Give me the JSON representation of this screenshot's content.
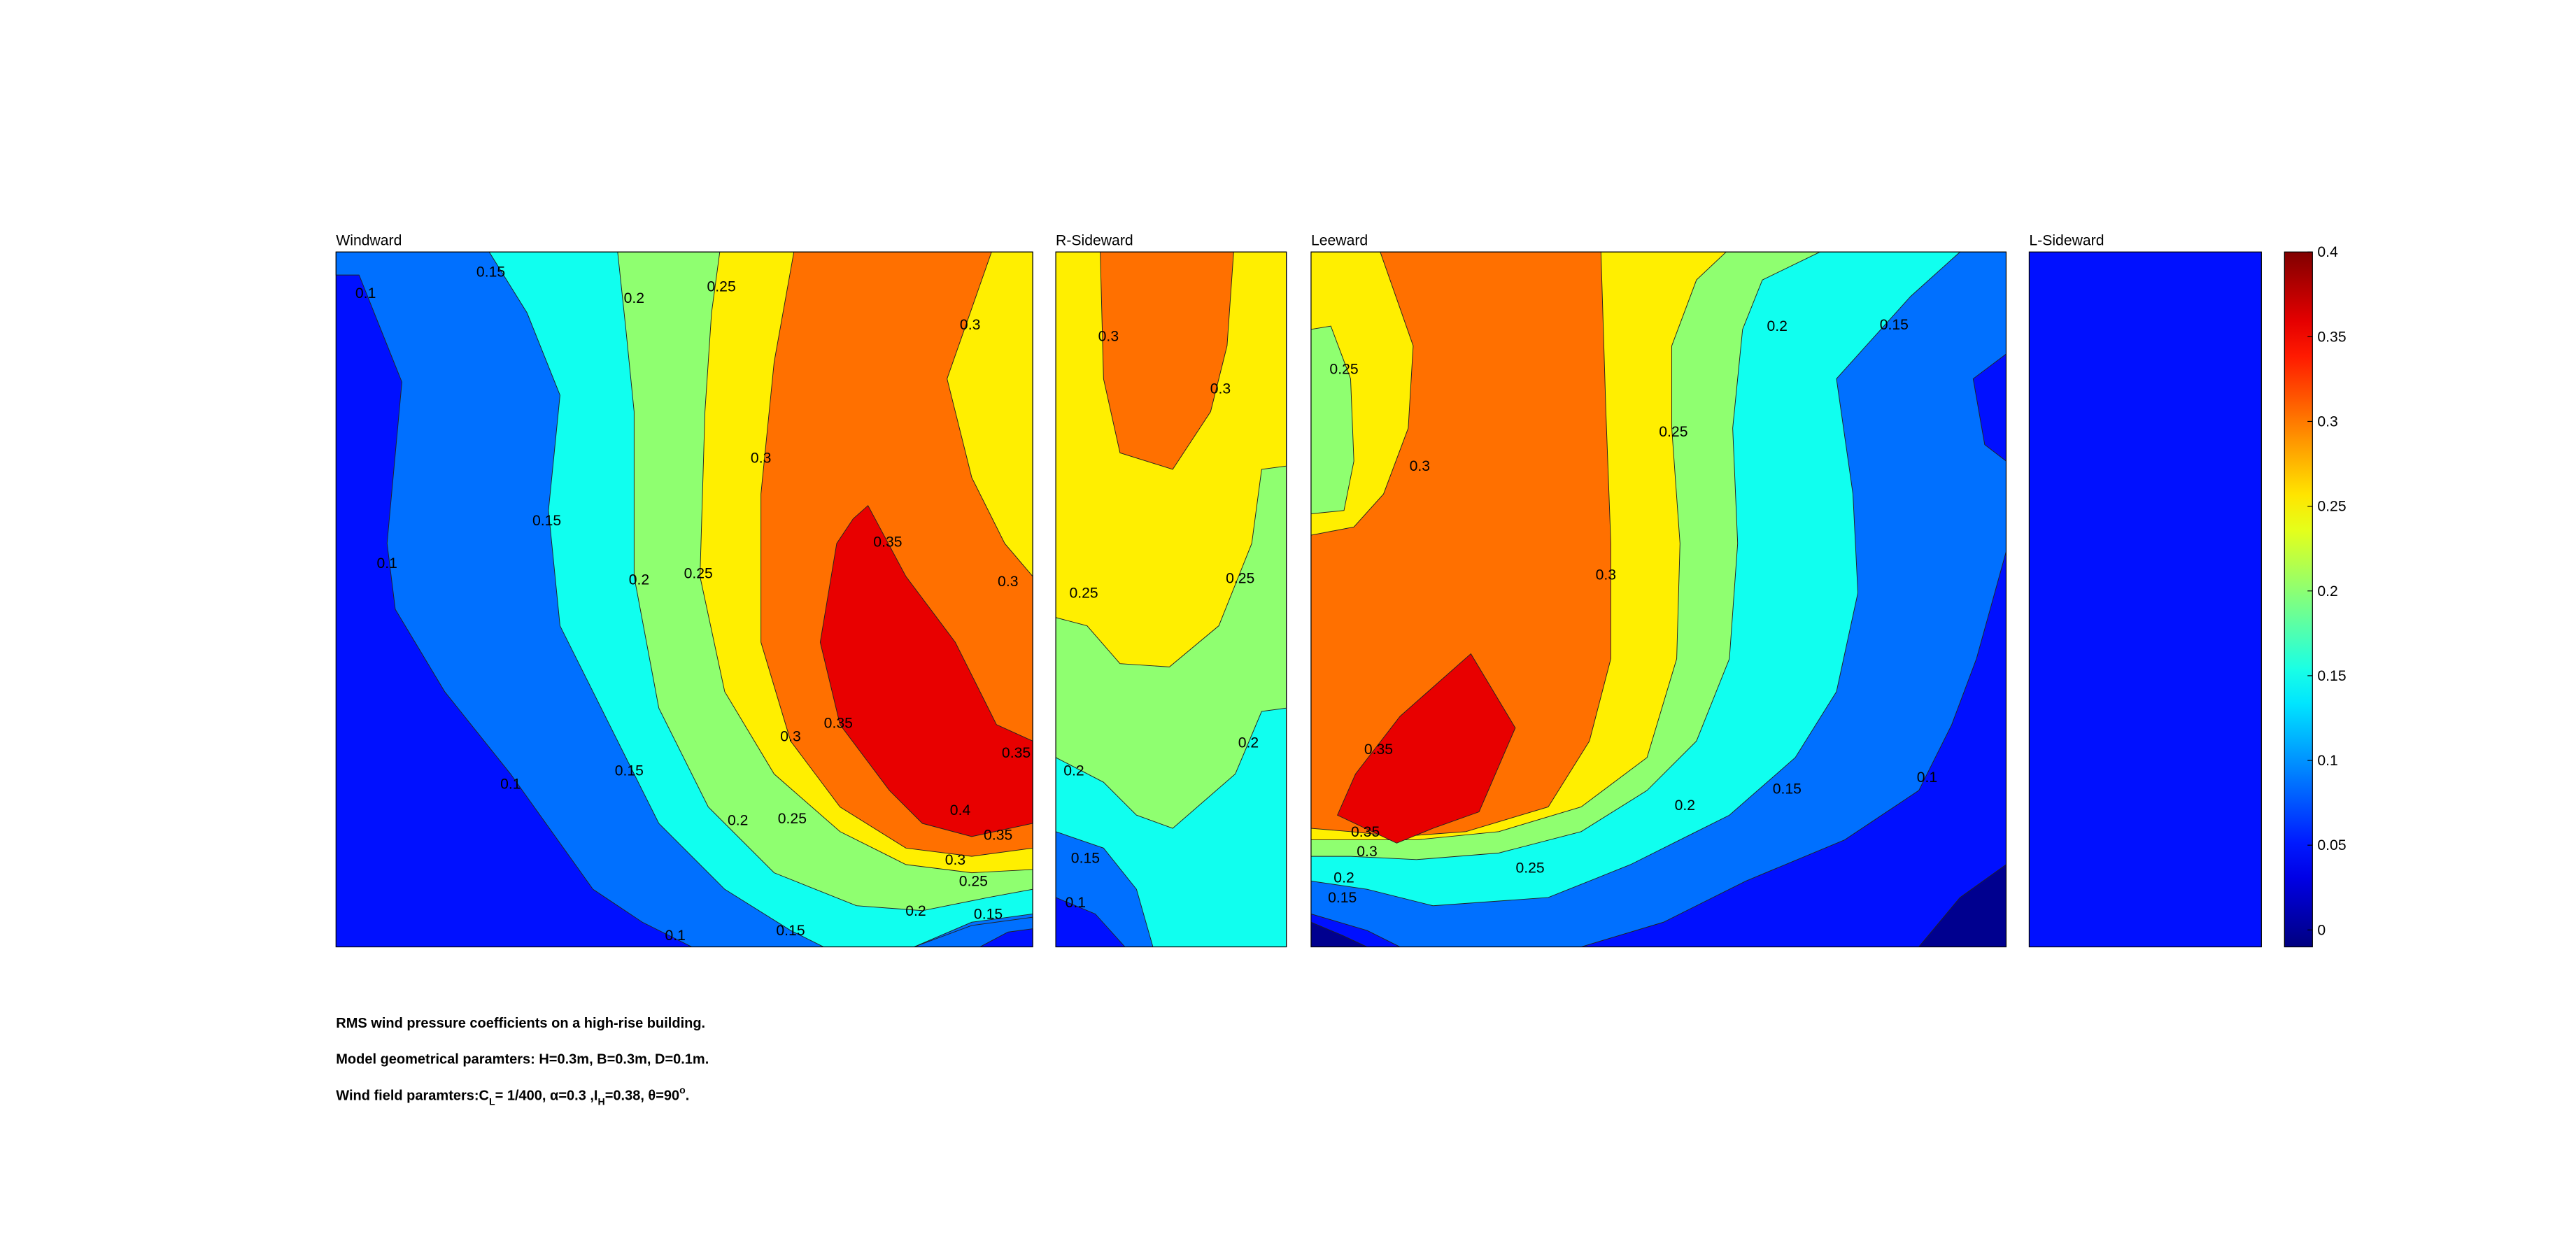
{
  "chart_data": [
    {
      "type": "contour",
      "title": "Windward",
      "labels": [
        0.1,
        0.1,
        0.1,
        0.1,
        0.15,
        0.15,
        0.15,
        0.15,
        0.15,
        0.2,
        0.2,
        0.2,
        0.2,
        0.25,
        0.25,
        0.25,
        0.25,
        0.3,
        0.3,
        0.3,
        0.3,
        0.3,
        0.35,
        0.35,
        0.35,
        0.35,
        0.4
      ]
    },
    {
      "type": "contour",
      "title": "R-Sideward",
      "labels": [
        0.3,
        0.3,
        0.25,
        0.25,
        0.2,
        0.2,
        0.15,
        0.1
      ]
    },
    {
      "type": "contour",
      "title": "Leeward",
      "labels": [
        0.25,
        0.25,
        0.25,
        0.3,
        0.3,
        0.3,
        0.35,
        0.35,
        0.2,
        0.2,
        0.2,
        0.15,
        0.15,
        0.15,
        0.1
      ]
    },
    {
      "type": "contour",
      "title": "L-Sideward",
      "labels": []
    },
    {
      "type": "colorbar",
      "levels": [
        0,
        0.05,
        0.1,
        0.15,
        0.2,
        0.25,
        0.3,
        0.35
      ],
      "colors": [
        "#00008f",
        "#0010ff",
        "#0070ff",
        "#10ffef",
        "#8fff70",
        "#ffef00",
        "#ff7000",
        "#e80000"
      ],
      "ylim": [
        -0.01,
        0.4
      ],
      "yticks": [
        0,
        0.05,
        0.1,
        0.15,
        0.2,
        0.25,
        0.3,
        0.35,
        0.4
      ]
    }
  ],
  "notes": {
    "line1": "RMS wind pressure coefficients on a high-rise building.",
    "line2": "Model geometrical paramters: H=0.3m, B=0.3m, D=0.1m.",
    "line3": [
      "Wind field paramters:C",
      "L",
      "= 1/400, α=0.3 ,I",
      "H",
      "=0.38, θ=90",
      "o",
      "."
    ]
  }
}
